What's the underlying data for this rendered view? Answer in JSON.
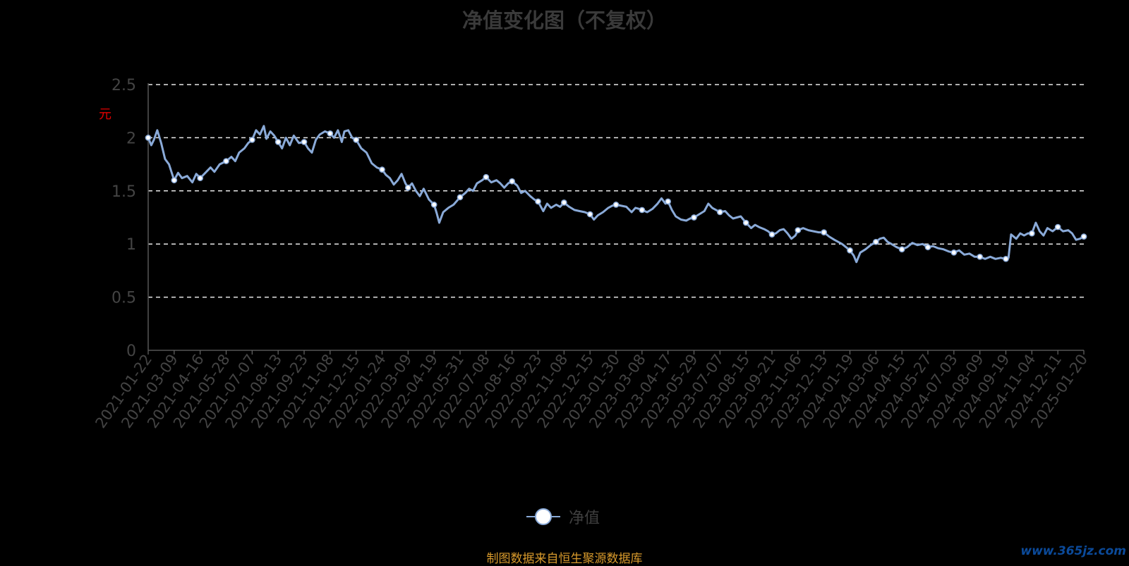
{
  "chart_data": {
    "type": "line",
    "title": "净值变化图（不复权）",
    "ylabel": "元",
    "ylim": [
      0,
      2.5
    ],
    "yticks": [
      "0",
      "0.5",
      "1",
      "1.5",
      "2",
      "2.5"
    ],
    "grid": true,
    "legend_position": "bottom-center",
    "x": [
      "2021-01-22",
      "2021-03-09",
      "2021-04-16",
      "2021-05-28",
      "2021-07-07",
      "2021-08-13",
      "2021-09-23",
      "2021-11-08",
      "2021-12-15",
      "2022-01-24",
      "2022-03-09",
      "2022-04-19",
      "2022-05-31",
      "2022-07-08",
      "2022-08-16",
      "2022-09-23",
      "2022-11-08",
      "2022-12-15",
      "2023-01-30",
      "2023-03-08",
      "2023-04-17",
      "2023-05-29",
      "2023-07-07",
      "2023-08-15",
      "2023-09-21",
      "2023-11-06",
      "2023-12-13",
      "2024-01-19",
      "2024-03-06",
      "2024-04-15",
      "2024-05-27",
      "2024-07-03",
      "2024-08-09",
      "2024-09-19",
      "2024-11-04",
      "2024-12-11",
      "2025-01-20"
    ],
    "series": [
      {
        "name": "净值",
        "color": "#8aaad8",
        "values": [
          2.0,
          1.6,
          1.62,
          1.78,
          1.98,
          1.96,
          1.96,
          2.04,
          1.98,
          1.7,
          1.53,
          1.37,
          1.44,
          1.63,
          1.59,
          1.4,
          1.39,
          1.28,
          1.37,
          1.32,
          1.4,
          1.25,
          1.3,
          1.2,
          1.09,
          1.13,
          1.11,
          0.94,
          1.02,
          0.95,
          0.97,
          0.92,
          0.88,
          0.86,
          1.1,
          1.16,
          1.07
        ],
        "path": [
          [
            0,
            2.0
          ],
          [
            0.12,
            1.93
          ],
          [
            0.22,
            1.98
          ],
          [
            0.35,
            2.07
          ],
          [
            0.5,
            1.95
          ],
          [
            0.65,
            1.8
          ],
          [
            0.8,
            1.75
          ],
          [
            1,
            1.6
          ],
          [
            1.15,
            1.67
          ],
          [
            1.3,
            1.62
          ],
          [
            1.5,
            1.64
          ],
          [
            1.7,
            1.58
          ],
          [
            1.85,
            1.66
          ],
          [
            2,
            1.62
          ],
          [
            2.2,
            1.67
          ],
          [
            2.4,
            1.72
          ],
          [
            2.55,
            1.68
          ],
          [
            2.75,
            1.75
          ],
          [
            3,
            1.78
          ],
          [
            3.2,
            1.82
          ],
          [
            3.35,
            1.78
          ],
          [
            3.5,
            1.86
          ],
          [
            3.7,
            1.9
          ],
          [
            3.85,
            1.95
          ],
          [
            4,
            1.98
          ],
          [
            4.15,
            2.07
          ],
          [
            4.3,
            2.03
          ],
          [
            4.45,
            2.11
          ],
          [
            4.55,
            1.99
          ],
          [
            4.7,
            2.06
          ],
          [
            4.85,
            2.02
          ],
          [
            5,
            1.96
          ],
          [
            5.15,
            1.9
          ],
          [
            5.3,
            2.0
          ],
          [
            5.45,
            1.93
          ],
          [
            5.6,
            2.02
          ],
          [
            5.8,
            1.95
          ],
          [
            6,
            1.96
          ],
          [
            6.15,
            1.9
          ],
          [
            6.3,
            1.86
          ],
          [
            6.45,
            1.98
          ],
          [
            6.6,
            2.03
          ],
          [
            6.8,
            2.06
          ],
          [
            7,
            2.04
          ],
          [
            7.15,
            2.0
          ],
          [
            7.3,
            2.07
          ],
          [
            7.45,
            1.96
          ],
          [
            7.55,
            2.06
          ],
          [
            7.7,
            2.07
          ],
          [
            7.85,
            2.0
          ],
          [
            8,
            1.98
          ],
          [
            8.2,
            1.9
          ],
          [
            8.4,
            1.86
          ],
          [
            8.6,
            1.76
          ],
          [
            8.8,
            1.72
          ],
          [
            9,
            1.7
          ],
          [
            9.15,
            1.65
          ],
          [
            9.3,
            1.62
          ],
          [
            9.45,
            1.56
          ],
          [
            9.6,
            1.6
          ],
          [
            9.75,
            1.66
          ],
          [
            9.9,
            1.57
          ],
          [
            10,
            1.53
          ],
          [
            10.15,
            1.57
          ],
          [
            10.3,
            1.5
          ],
          [
            10.45,
            1.45
          ],
          [
            10.6,
            1.52
          ],
          [
            10.8,
            1.42
          ],
          [
            11,
            1.37
          ],
          [
            11.1,
            1.29
          ],
          [
            11.2,
            1.2
          ],
          [
            11.35,
            1.3
          ],
          [
            11.55,
            1.34
          ],
          [
            11.75,
            1.37
          ],
          [
            12,
            1.44
          ],
          [
            12.2,
            1.48
          ],
          [
            12.35,
            1.52
          ],
          [
            12.5,
            1.5
          ],
          [
            12.65,
            1.57
          ],
          [
            12.85,
            1.6
          ],
          [
            13,
            1.63
          ],
          [
            13.2,
            1.58
          ],
          [
            13.4,
            1.6
          ],
          [
            13.55,
            1.57
          ],
          [
            13.7,
            1.53
          ],
          [
            13.85,
            1.57
          ],
          [
            14,
            1.59
          ],
          [
            14.2,
            1.55
          ],
          [
            14.35,
            1.48
          ],
          [
            14.5,
            1.5
          ],
          [
            14.7,
            1.45
          ],
          [
            14.85,
            1.42
          ],
          [
            15,
            1.4
          ],
          [
            15.2,
            1.31
          ],
          [
            15.35,
            1.38
          ],
          [
            15.5,
            1.34
          ],
          [
            15.7,
            1.37
          ],
          [
            15.85,
            1.35
          ],
          [
            16,
            1.39
          ],
          [
            16.2,
            1.35
          ],
          [
            16.4,
            1.32
          ],
          [
            16.6,
            1.31
          ],
          [
            16.8,
            1.3
          ],
          [
            17,
            1.28
          ],
          [
            17.15,
            1.23
          ],
          [
            17.3,
            1.27
          ],
          [
            17.5,
            1.3
          ],
          [
            17.7,
            1.34
          ],
          [
            17.85,
            1.36
          ],
          [
            18,
            1.37
          ],
          [
            18.2,
            1.36
          ],
          [
            18.4,
            1.35
          ],
          [
            18.6,
            1.3
          ],
          [
            18.75,
            1.34
          ],
          [
            18.9,
            1.33
          ],
          [
            19,
            1.32
          ],
          [
            19.2,
            1.3
          ],
          [
            19.4,
            1.33
          ],
          [
            19.6,
            1.38
          ],
          [
            19.75,
            1.43
          ],
          [
            19.9,
            1.38
          ],
          [
            20,
            1.4
          ],
          [
            20.15,
            1.32
          ],
          [
            20.3,
            1.26
          ],
          [
            20.5,
            1.23
          ],
          [
            20.7,
            1.22
          ],
          [
            20.85,
            1.24
          ],
          [
            21,
            1.25
          ],
          [
            21.2,
            1.28
          ],
          [
            21.4,
            1.31
          ],
          [
            21.55,
            1.38
          ],
          [
            21.7,
            1.34
          ],
          [
            21.85,
            1.32
          ],
          [
            22,
            1.3
          ],
          [
            22.2,
            1.31
          ],
          [
            22.35,
            1.27
          ],
          [
            22.5,
            1.24
          ],
          [
            22.65,
            1.25
          ],
          [
            22.8,
            1.26
          ],
          [
            23,
            1.2
          ],
          [
            23.2,
            1.15
          ],
          [
            23.35,
            1.18
          ],
          [
            23.5,
            1.16
          ],
          [
            23.7,
            1.14
          ],
          [
            23.85,
            1.12
          ],
          [
            24,
            1.09
          ],
          [
            24.15,
            1.1
          ],
          [
            24.3,
            1.13
          ],
          [
            24.45,
            1.14
          ],
          [
            24.6,
            1.1
          ],
          [
            24.75,
            1.05
          ],
          [
            24.9,
            1.08
          ],
          [
            25,
            1.13
          ],
          [
            25.2,
            1.15
          ],
          [
            25.4,
            1.13
          ],
          [
            25.6,
            1.12
          ],
          [
            25.8,
            1.11
          ],
          [
            26,
            1.11
          ],
          [
            26.2,
            1.07
          ],
          [
            26.4,
            1.04
          ],
          [
            26.55,
            1.02
          ],
          [
            26.7,
            1.0
          ],
          [
            26.85,
            0.97
          ],
          [
            27,
            0.94
          ],
          [
            27.15,
            0.89
          ],
          [
            27.25,
            0.83
          ],
          [
            27.4,
            0.92
          ],
          [
            27.6,
            0.95
          ],
          [
            27.8,
            0.99
          ],
          [
            28,
            1.02
          ],
          [
            28.15,
            1.05
          ],
          [
            28.3,
            1.06
          ],
          [
            28.45,
            1.02
          ],
          [
            28.6,
            1.0
          ],
          [
            28.8,
            0.97
          ],
          [
            29,
            0.95
          ],
          [
            29.2,
            0.97
          ],
          [
            29.4,
            1.01
          ],
          [
            29.6,
            0.99
          ],
          [
            29.8,
            1.0
          ],
          [
            30,
            0.97
          ],
          [
            30.2,
            0.98
          ],
          [
            30.4,
            0.96
          ],
          [
            30.6,
            0.95
          ],
          [
            30.8,
            0.93
          ],
          [
            31,
            0.92
          ],
          [
            31.2,
            0.94
          ],
          [
            31.4,
            0.9
          ],
          [
            31.6,
            0.91
          ],
          [
            31.8,
            0.88
          ],
          [
            32,
            0.88
          ],
          [
            32.2,
            0.86
          ],
          [
            32.4,
            0.88
          ],
          [
            32.6,
            0.86
          ],
          [
            32.8,
            0.87
          ],
          [
            33,
            0.86
          ],
          [
            33.1,
            0.87
          ],
          [
            33.2,
            1.09
          ],
          [
            33.4,
            1.05
          ],
          [
            33.55,
            1.1
          ],
          [
            33.7,
            1.08
          ],
          [
            33.85,
            1.1
          ],
          [
            34,
            1.1
          ],
          [
            34.15,
            1.2
          ],
          [
            34.3,
            1.12
          ],
          [
            34.45,
            1.08
          ],
          [
            34.6,
            1.15
          ],
          [
            34.8,
            1.12
          ],
          [
            35,
            1.16
          ],
          [
            35.2,
            1.12
          ],
          [
            35.4,
            1.13
          ],
          [
            35.55,
            1.1
          ],
          [
            35.7,
            1.04
          ],
          [
            35.85,
            1.05
          ],
          [
            36,
            1.07
          ]
        ]
      }
    ]
  },
  "legend": {
    "label": "净值"
  },
  "footer": {
    "source": "制图数据来自恒生聚源数据库",
    "watermark": "www.365jz.com"
  }
}
